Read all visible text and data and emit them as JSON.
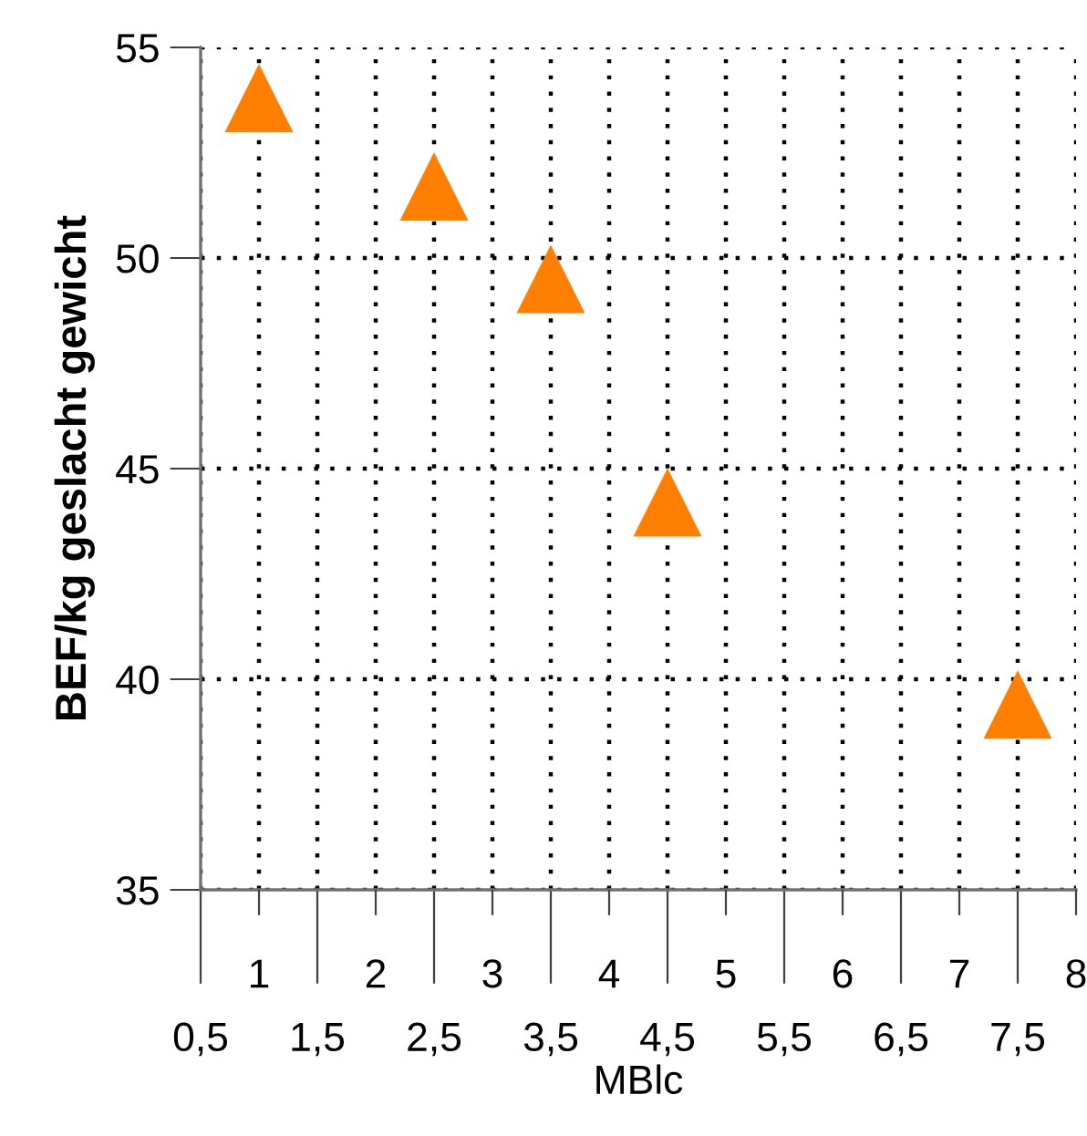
{
  "chart_data": {
    "type": "scatter",
    "xlabel": "MBlc",
    "ylabel": "BEF/kg geslacht gewicht",
    "x": [
      1,
      2.5,
      3.5,
      4.5,
      7.5
    ],
    "series": [
      {
        "color": "#ff8000",
        "values": [
          53.8,
          51.7,
          49.5,
          44.2,
          39.4
        ]
      }
    ],
    "marker": "triangle",
    "xlim": [
      0.5,
      8
    ],
    "ylim": [
      35,
      55
    ],
    "x2lim": [
      0.5,
      8
    ],
    "xticks": [
      {
        "value": 0.5,
        "label": "0,5"
      },
      {
        "value": 1.5,
        "label": "1,5"
      },
      {
        "value": 2.5,
        "label": "2,5"
      },
      {
        "value": 3.5,
        "label": "3,5"
      },
      {
        "value": 4.5,
        "label": "4,5"
      },
      {
        "value": 5.5,
        "label": "5,5"
      },
      {
        "value": 6.5,
        "label": "6,5"
      },
      {
        "value": 7.5,
        "label": "7,5"
      }
    ],
    "x2ticks": [
      1,
      2,
      3,
      4,
      5,
      6,
      7,
      8
    ],
    "yticks": [
      35,
      40,
      45,
      50,
      55
    ],
    "grid": true,
    "legend": false
  }
}
